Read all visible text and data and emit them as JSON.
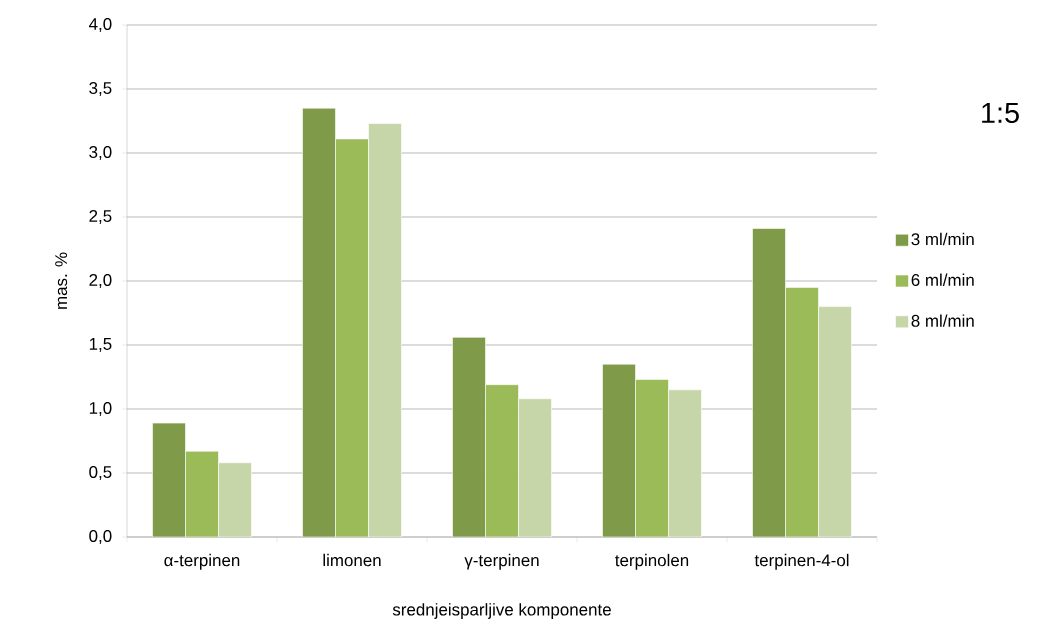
{
  "chart_data": {
    "type": "bar",
    "title": "1:5",
    "xlabel": "srednjeisparljive komponente",
    "ylabel": "mas.  %",
    "categories": [
      "α-terpinen",
      "limonen",
      "γ-terpinen",
      "terpinolen",
      "terpinen-4-ol"
    ],
    "series": [
      {
        "name": "3 ml/min",
        "color": "#7f9a48",
        "values": [
          0.89,
          3.35,
          1.56,
          1.35,
          2.41
        ]
      },
      {
        "name": "6 ml/min",
        "color": "#9bbb59",
        "values": [
          0.67,
          3.11,
          1.19,
          1.23,
          1.95
        ]
      },
      {
        "name": "8 ml/min",
        "color": "#c6d6a9",
        "values": [
          0.58,
          3.23,
          1.08,
          1.15,
          1.8
        ]
      }
    ],
    "ylim": [
      0,
      4
    ],
    "yticks": [
      {
        "value": 0,
        "label": "0,0"
      },
      {
        "value": 0.5,
        "label": "0,5"
      },
      {
        "value": 1,
        "label": "1,0"
      },
      {
        "value": 1.5,
        "label": "1,5"
      },
      {
        "value": 2,
        "label": "2,0"
      },
      {
        "value": 2.5,
        "label": "2,5"
      },
      {
        "value": 3,
        "label": "3,0"
      },
      {
        "value": 3.5,
        "label": "3,5"
      },
      {
        "value": 4,
        "label": "4,0"
      }
    ],
    "grid": "y",
    "legend": "right"
  }
}
